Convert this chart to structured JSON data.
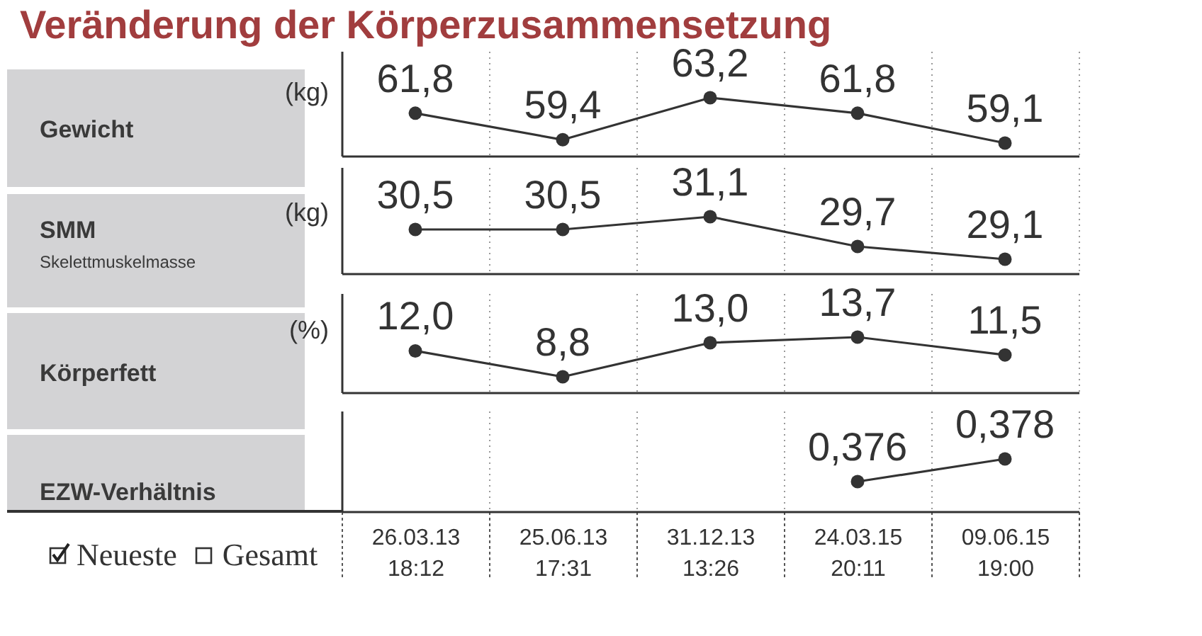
{
  "chart_data": [
    {
      "type": "line",
      "title": "Veränderung der Körperzusammensetzung",
      "ylabel": "Gewicht",
      "annotations": [
        "(kg)"
      ],
      "categories": [
        null,
        null,
        null,
        null,
        null
      ],
      "values": [
        61.8,
        59.4,
        63.2,
        61.8,
        59.1
      ],
      "value_labels": [
        "61,8",
        "59,4",
        "63,2",
        "61,8",
        "59,1"
      ],
      "color": "#333333",
      "marker": "circle",
      "grid": "x",
      "tick_labels": false
    },
    {
      "type": "line",
      "ylabel": "SMM",
      "annotations": [
        "(kg)",
        "Skelettmuskelmasse"
      ],
      "categories": [
        null,
        null,
        null,
        null,
        null
      ],
      "values": [
        30.5,
        30.5,
        31.1,
        29.7,
        29.1
      ],
      "value_labels": [
        "30,5",
        "30,5",
        "31,1",
        "29,7",
        "29,1"
      ],
      "color": "#333333",
      "marker": "circle",
      "grid": "x",
      "tick_labels": false
    },
    {
      "type": "line",
      "ylabel": "Körperfett",
      "annotations": [
        "(%)"
      ],
      "categories": [
        null,
        null,
        null,
        null,
        null
      ],
      "values": [
        12.0,
        8.8,
        13.0,
        13.7,
        11.5
      ],
      "value_labels": [
        "12,0",
        "8,8",
        "13,0",
        "13,7",
        "11,5"
      ],
      "color": "#333333",
      "marker": "circle",
      "grid": "x",
      "tick_labels": false
    },
    {
      "type": "line",
      "ylabel": "EZW-Verhältnis",
      "annotations": [
        "Neueste",
        "Gesamt"
      ],
      "categories": [
        "26.03.13 18:12",
        "25.06.13 17:31",
        "31.12.13 13:26",
        "24.03.15 20:11",
        "09.06.15 19:00"
      ],
      "values": [
        null,
        null,
        null,
        0.376,
        0.378
      ],
      "value_labels": [
        null,
        null,
        null,
        "0,376",
        "0,378"
      ],
      "color": "#333333",
      "marker": "circle",
      "grid": "x",
      "tick_labels": "x"
    }
  ]
}
